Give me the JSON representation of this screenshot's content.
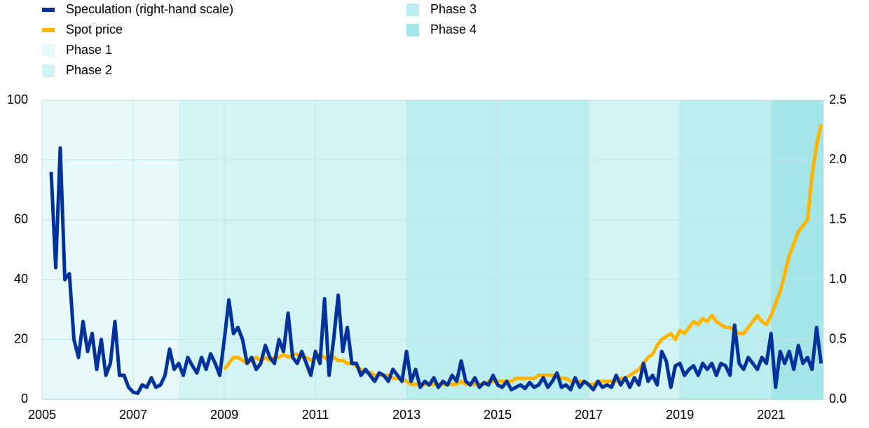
{
  "chart_data": {
    "type": "line",
    "x": [
      2005.2,
      2005.3,
      2005.4,
      2005.5,
      2005.6,
      2005.7,
      2005.8,
      2005.9,
      2006.0,
      2006.1,
      2006.2,
      2006.3,
      2006.4,
      2006.5,
      2006.6,
      2006.7,
      2006.8,
      2006.9,
      2007.0,
      2007.1,
      2007.2,
      2007.3,
      2007.4,
      2007.5,
      2007.6,
      2007.7,
      2007.8,
      2007.9,
      2008.0,
      2008.1,
      2008.2,
      2008.3,
      2008.4,
      2008.5,
      2008.6,
      2008.7,
      2008.8,
      2008.9,
      2009.0,
      2009.1,
      2009.2,
      2009.3,
      2009.4,
      2009.5,
      2009.6,
      2009.7,
      2009.8,
      2009.9,
      2010.0,
      2010.1,
      2010.2,
      2010.3,
      2010.4,
      2010.5,
      2010.6,
      2010.7,
      2010.8,
      2010.9,
      2011.0,
      2011.1,
      2011.2,
      2011.3,
      2011.4,
      2011.5,
      2011.6,
      2011.7,
      2011.8,
      2011.9,
      2012.0,
      2012.1,
      2012.2,
      2012.3,
      2012.4,
      2012.5,
      2012.6,
      2012.7,
      2012.8,
      2012.9,
      2013.0,
      2013.1,
      2013.2,
      2013.3,
      2013.4,
      2013.5,
      2013.6,
      2013.7,
      2013.8,
      2013.9,
      2014.0,
      2014.1,
      2014.2,
      2014.3,
      2014.4,
      2014.5,
      2014.6,
      2014.7,
      2014.8,
      2014.9,
      2015.0,
      2015.1,
      2015.2,
      2015.3,
      2015.4,
      2015.5,
      2015.6,
      2015.7,
      2015.8,
      2015.9,
      2016.0,
      2016.1,
      2016.2,
      2016.3,
      2016.4,
      2016.5,
      2016.6,
      2016.7,
      2016.8,
      2016.9,
      2017.0,
      2017.1,
      2017.2,
      2017.3,
      2017.4,
      2017.5,
      2017.6,
      2017.7,
      2017.8,
      2017.9,
      2018.0,
      2018.1,
      2018.2,
      2018.3,
      2018.4,
      2018.5,
      2018.6,
      2018.7,
      2018.8,
      2018.9,
      2019.0,
      2019.1,
      2019.2,
      2019.3,
      2019.4,
      2019.5,
      2019.6,
      2019.7,
      2019.8,
      2019.9,
      2020.0,
      2020.1,
      2020.2,
      2020.3,
      2020.4,
      2020.5,
      2020.6,
      2020.7,
      2020.8,
      2020.9,
      2021.0,
      2021.1,
      2021.2,
      2021.3,
      2021.4,
      2021.5,
      2021.6,
      2021.7,
      2021.8,
      2021.9,
      2022.0,
      2022.1
    ],
    "series": [
      {
        "name": "Speculation (right-hand scale)",
        "color": "#003299",
        "axis": "y2",
        "values": [
          1.9,
          1.1,
          2.1,
          1.0,
          1.05,
          0.5,
          0.35,
          0.65,
          0.4,
          0.55,
          0.25,
          0.5,
          0.2,
          0.3,
          0.65,
          0.2,
          0.2,
          0.1,
          0.06,
          0.05,
          0.12,
          0.1,
          0.18,
          0.1,
          0.12,
          0.2,
          0.42,
          0.25,
          0.3,
          0.2,
          0.35,
          0.28,
          0.22,
          0.35,
          0.25,
          0.38,
          0.3,
          0.2,
          0.5,
          0.83,
          0.55,
          0.6,
          0.5,
          0.3,
          0.35,
          0.25,
          0.3,
          0.45,
          0.35,
          0.3,
          0.5,
          0.4,
          0.72,
          0.35,
          0.3,
          0.4,
          0.3,
          0.2,
          0.4,
          0.3,
          0.84,
          0.2,
          0.5,
          0.87,
          0.4,
          0.6,
          0.3,
          0.3,
          0.2,
          0.25,
          0.2,
          0.15,
          0.22,
          0.2,
          0.15,
          0.25,
          0.2,
          0.15,
          0.4,
          0.15,
          0.25,
          0.1,
          0.15,
          0.12,
          0.18,
          0.1,
          0.15,
          0.12,
          0.2,
          0.15,
          0.32,
          0.15,
          0.12,
          0.18,
          0.1,
          0.14,
          0.12,
          0.2,
          0.12,
          0.1,
          0.15,
          0.08,
          0.1,
          0.12,
          0.09,
          0.14,
          0.1,
          0.12,
          0.18,
          0.1,
          0.15,
          0.22,
          0.1,
          0.12,
          0.08,
          0.18,
          0.1,
          0.15,
          0.12,
          0.08,
          0.15,
          0.1,
          0.12,
          0.1,
          0.2,
          0.12,
          0.18,
          0.1,
          0.18,
          0.12,
          0.3,
          0.15,
          0.2,
          0.12,
          0.4,
          0.32,
          0.1,
          0.28,
          0.3,
          0.2,
          0.25,
          0.28,
          0.2,
          0.3,
          0.25,
          0.3,
          0.2,
          0.3,
          0.28,
          0.2,
          0.62,
          0.3,
          0.25,
          0.35,
          0.3,
          0.25,
          0.35,
          0.3,
          0.55,
          0.1,
          0.4,
          0.3,
          0.4,
          0.25,
          0.45,
          0.3,
          0.35,
          0.25,
          0.6,
          0.3
        ]
      },
      {
        "name": "Spot price",
        "color": "#ffb400",
        "values": [
          null,
          null,
          null,
          null,
          null,
          null,
          null,
          null,
          null,
          null,
          null,
          null,
          null,
          null,
          null,
          null,
          null,
          null,
          null,
          null,
          null,
          null,
          null,
          null,
          null,
          null,
          null,
          null,
          null,
          null,
          null,
          null,
          null,
          null,
          null,
          null,
          null,
          null,
          10,
          12,
          14,
          14,
          13,
          12,
          13,
          14,
          13,
          14,
          13,
          14,
          14,
          15,
          14,
          15,
          15,
          14,
          14,
          13,
          14,
          15,
          14,
          13,
          14,
          13,
          13,
          12,
          12,
          11,
          10,
          9,
          9,
          8,
          8,
          8,
          8,
          7,
          7,
          7,
          6,
          5,
          5,
          5,
          5,
          5,
          5,
          5,
          5,
          5,
          5,
          5,
          6,
          5,
          5,
          5,
          5,
          5,
          6,
          6,
          6,
          6,
          6,
          6,
          7,
          7,
          7,
          7,
          7,
          8,
          8,
          8,
          8,
          8,
          7,
          7,
          6,
          6,
          6,
          6,
          5,
          5,
          6,
          6,
          6,
          6,
          6,
          7,
          7,
          8,
          9,
          10,
          12,
          14,
          15,
          18,
          20,
          21,
          22,
          20,
          23,
          22,
          24,
          26,
          25,
          27,
          26,
          28,
          26,
          25,
          24,
          24,
          23,
          22,
          22,
          24,
          26,
          28,
          26,
          25,
          28,
          32,
          36,
          42,
          48,
          52,
          56,
          58,
          60,
          75,
          85,
          92
        ]
      }
    ],
    "phases": [
      {
        "name": "Phase 1",
        "color": "#e8f9f9",
        "spans": [
          [
            2005,
            2008
          ]
        ]
      },
      {
        "name": "Phase 2",
        "color": "#d2f4f5",
        "spans": [
          [
            2008,
            2013
          ],
          [
            2017,
            2019
          ]
        ]
      },
      {
        "name": "Phase 3",
        "color": "#bbeeee",
        "spans": [
          [
            2013,
            2017
          ],
          [
            2019,
            2021
          ]
        ]
      },
      {
        "name": "Phase 4",
        "color": "#a4e6e7",
        "spans": [
          [
            2021,
            2022.15
          ]
        ]
      }
    ],
    "xlim": [
      2005,
      2022.15
    ],
    "xticks": [
      2005,
      2007,
      2009,
      2011,
      2013,
      2015,
      2017,
      2019,
      2021
    ],
    "ylim": [
      0,
      100
    ],
    "yticks": [
      0,
      20,
      40,
      60,
      80,
      100
    ],
    "y2lim": [
      0,
      2.5
    ],
    "y2ticks": [
      {
        "value": 0,
        "label": "0.0"
      },
      0.5,
      {
        "value": 1,
        "label": "1.0"
      },
      1.5,
      {
        "value": 2,
        "label": "2.0"
      },
      2.5
    ],
    "grid": true
  }
}
